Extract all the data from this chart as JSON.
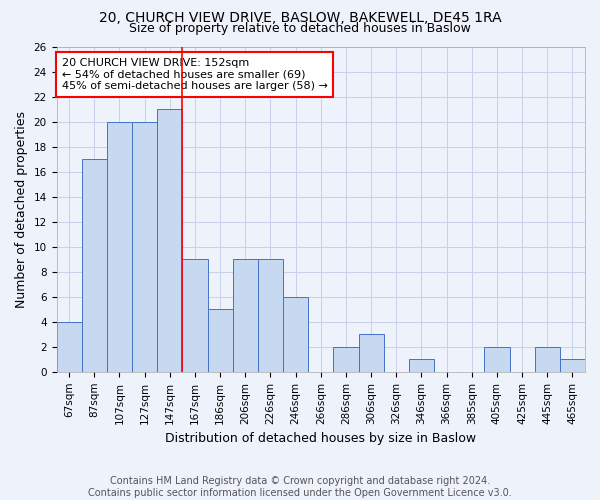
{
  "title1": "20, CHURCH VIEW DRIVE, BASLOW, BAKEWELL, DE45 1RA",
  "title2": "Size of property relative to detached houses in Baslow",
  "xlabel": "Distribution of detached houses by size in Baslow",
  "ylabel": "Number of detached properties",
  "bar_labels": [
    "67sqm",
    "87sqm",
    "107sqm",
    "127sqm",
    "147sqm",
    "167sqm",
    "186sqm",
    "206sqm",
    "226sqm",
    "246sqm",
    "266sqm",
    "286sqm",
    "306sqm",
    "326sqm",
    "346sqm",
    "366sqm",
    "385sqm",
    "405sqm",
    "425sqm",
    "445sqm",
    "465sqm"
  ],
  "bar_values": [
    4,
    17,
    20,
    20,
    21,
    9,
    5,
    9,
    9,
    6,
    0,
    2,
    3,
    0,
    1,
    0,
    0,
    2,
    0,
    2,
    1
  ],
  "bar_color": "#c6d9f0",
  "bar_edge_color": "#4472c4",
  "red_line_x": 4.5,
  "annotation_text": "20 CHURCH VIEW DRIVE: 152sqm\n← 54% of detached houses are smaller (69)\n45% of semi-detached houses are larger (58) →",
  "annotation_box_color": "#ffffff",
  "annotation_box_edge_color": "#ff0000",
  "ylim": [
    0,
    26
  ],
  "yticks": [
    0,
    2,
    4,
    6,
    8,
    10,
    12,
    14,
    16,
    18,
    20,
    22,
    24,
    26
  ],
  "footer_line1": "Contains HM Land Registry data © Crown copyright and database right 2024.",
  "footer_line2": "Contains public sector information licensed under the Open Government Licence v3.0.",
  "grid_color": "#c8d0e8",
  "bg_color": "#eef2fb",
  "title1_fontsize": 10,
  "title2_fontsize": 9,
  "annotation_fontsize": 8,
  "ylabel_fontsize": 9,
  "xlabel_fontsize": 9,
  "tick_fontsize": 7.5,
  "footer_fontsize": 7
}
